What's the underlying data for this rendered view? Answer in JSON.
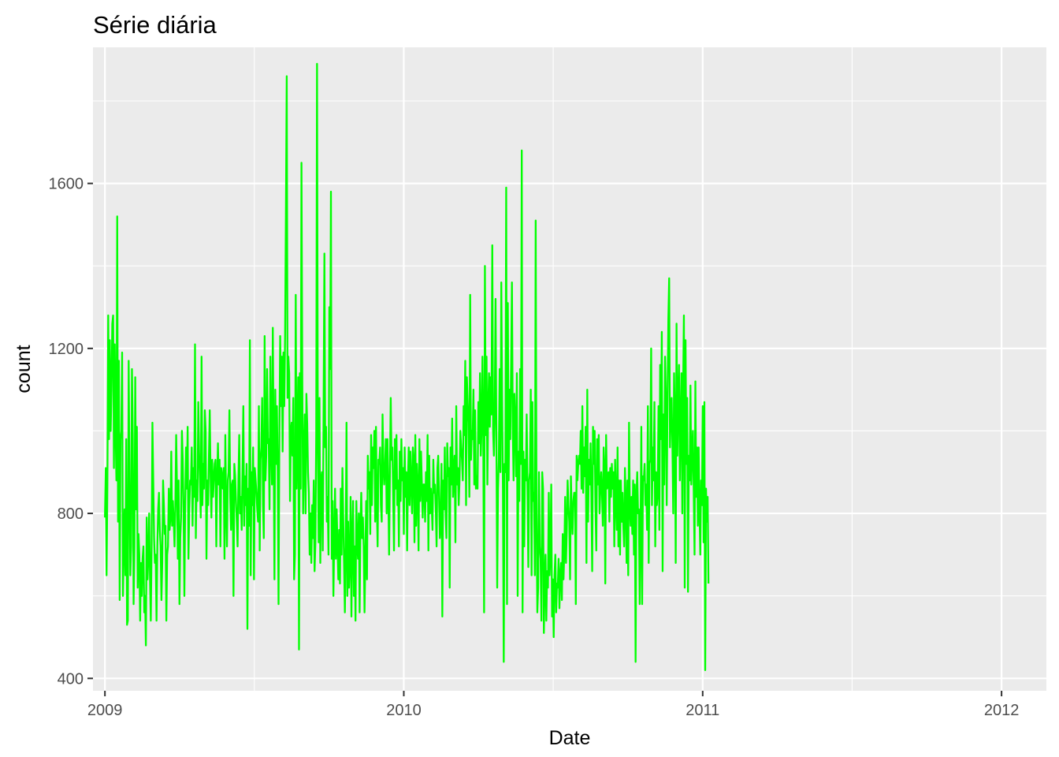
{
  "chart_data": {
    "type": "line",
    "title": "Série diária",
    "xlabel": "Date",
    "ylabel": "count",
    "xlim": [
      2008.96,
      2012.15
    ],
    "ylim": [
      370,
      1930
    ],
    "x_ticks": [
      2009,
      2010,
      2011,
      2012
    ],
    "x_tick_labels": [
      "2009",
      "2010",
      "2011",
      "2012"
    ],
    "x_minor_ticks": [
      2009.5,
      2010.5,
      2011.5
    ],
    "y_ticks": [
      400,
      800,
      1200,
      1600
    ],
    "y_tick_labels": [
      "400",
      "800",
      "1200",
      "1600"
    ],
    "y_minor_ticks": [
      600,
      1000,
      1400,
      1800
    ],
    "colors": {
      "line": "#00ff00",
      "panel": "#ebebeb",
      "grid": "#ffffff",
      "tick": "#4d4d4d"
    },
    "series": [
      {
        "name": "count",
        "x_start": 2009.0,
        "x_step": 0.00274,
        "values": [
          790,
          910,
          650,
          870,
          1280,
          980,
          1220,
          1000,
          1100,
          1260,
          1280,
          910,
          1210,
          1010,
          880,
          1520,
          780,
          1170,
          590,
          980,
          1000,
          1190,
          600,
          720,
          810,
          650,
          980,
          530,
          540,
          1170,
          900,
          650,
          720,
          1150,
          980,
          580,
          720,
          1130,
          810,
          1010,
          620,
          750,
          700,
          540,
          680,
          600,
          690,
          720,
          560,
          600,
          480,
          790,
          640,
          690,
          800,
          650,
          540,
          720,
          1020,
          880,
          740,
          680,
          700,
          540,
          720,
          810,
          850,
          760,
          720,
          590,
          680,
          880,
          820,
          750,
          770,
          540,
          700,
          720,
          860,
          760,
          790,
          950,
          770,
          830,
          780,
          720,
          820,
          990,
          860,
          690,
          880,
          580,
          740,
          790,
          1000,
          930,
          810,
          600,
          820,
          960,
          860,
          1010,
          690,
          810,
          880,
          870,
          960,
          770,
          910,
          840,
          1210,
          740,
          880,
          830,
          1070,
          950,
          880,
          790,
          1180,
          820,
          920,
          860,
          1050,
          1000,
          690,
          880,
          820,
          940,
          1050,
          890,
          790,
          930,
          840,
          880,
          920,
          930,
          720,
          880,
          970,
          870,
          930,
          720,
          910,
          890,
          860,
          910,
          690,
          990,
          810,
          720,
          880,
          900,
          1050,
          840,
          760,
          870,
          880,
          600,
          920,
          890,
          830,
          780,
          720,
          880,
          990,
          800,
          840,
          760,
          900,
          1060,
          770,
          890,
          820,
          920,
          520,
          860,
          770,
          1220,
          650,
          900,
          820,
          960,
          640,
          910,
          880,
          850,
          810,
          780,
          1060,
          710,
          930,
          960,
          1080,
          820,
          740,
          1230,
          880,
          940,
          1150,
          970,
          980,
          810,
          1180,
          960,
          870,
          1250,
          960,
          640,
          1100,
          920,
          1060,
          900,
          580,
          990,
          1230,
          1060,
          1180,
          950,
          1190,
          1060,
          1230,
          1530,
          1860,
          1080,
          1180,
          1140,
          830,
          1000,
          1020,
          940,
          1080,
          640,
          700,
          1330,
          860,
          980,
          1130,
          470,
          1140,
          860,
          1650,
          1120,
          800,
          940,
          1040,
          800,
          1090,
          1020,
          900,
          850,
          700,
          800,
          680,
          820,
          740,
          880,
          660,
          730,
          990,
          1890,
          960,
          730,
          1080,
          680,
          880,
          900,
          710,
          1050,
          1430,
          960,
          1010,
          780,
          840,
          700,
          1300,
          1150,
          1580,
          690,
          830,
          600,
          740,
          860,
          690,
          810,
          720,
          640,
          760,
          630,
          860,
          700,
          910,
          790,
          680,
          560,
          720,
          1020,
          600,
          780,
          620,
          680,
          840,
          550,
          740,
          830,
          600,
          720,
          540,
          830,
          730,
          690,
          800,
          560,
          770,
          850,
          740,
          790,
          720,
          560,
          690,
          830,
          640,
          940,
          860,
          900,
          750,
          990,
          820,
          960,
          910,
          1000,
          780,
          1010,
          820,
          720,
          930,
          920,
          960,
          820,
          780,
          1040,
          920,
          870,
          910,
          980,
          800,
          980,
          860,
          700,
          900,
          1080,
          930,
          960,
          840,
          710,
          980,
          860,
          990,
          820,
          880,
          720,
          950,
          830,
          980,
          880,
          910,
          750,
          960,
          840,
          900,
          710,
          880,
          960,
          820,
          950,
          870,
          800,
          960,
          930,
          730,
          990,
          770,
          920,
          860,
          710,
          980,
          830,
          950,
          870,
          790,
          870,
          870,
          780,
          900,
          830,
          990,
          710,
          940,
          800,
          860,
          820,
          760,
          930,
          850,
          870,
          810,
          720,
          910,
          940,
          840,
          740,
          780,
          920,
          550,
          880,
          810,
          960,
          800,
          740,
          970,
          890,
          910,
          620,
          960,
          870,
          1030,
          840,
          900,
          940,
          730,
          1060,
          870,
          910,
          820,
          880,
          1000,
          960,
          930,
          880,
          1060,
          990,
          1170,
          820,
          1130,
          1070,
          1020,
          840,
          1330,
          930,
          1000,
          980,
          1100,
          870,
          1050,
          860,
          890,
          860,
          1070,
          970,
          1140,
          940,
          1010,
          1180,
          980,
          560,
          1400,
          990,
          1180,
          870,
          1050,
          1140,
          1010,
          1130,
          1040,
          1450,
          1000,
          940,
          1050,
          1320,
          1000,
          620,
          860,
          930,
          1150,
          900,
          1360,
          1080,
          860,
          440,
          920,
          900,
          1590,
          580,
          1310,
          880,
          1100,
          980,
          1160,
          1360,
          1010,
          880,
          1090,
          1020,
          890,
          1140,
          600,
          950,
          830,
          1150,
          920,
          1680,
          560,
          950,
          720,
          930,
          880,
          1040,
          860,
          670,
          880,
          900,
          1100,
          650,
          1070,
          830,
          850,
          650,
          1510,
          810,
          560,
          620,
          900,
          720,
          690,
          540,
          900,
          860,
          510,
          630,
          700,
          540,
          660,
          620,
          850,
          650,
          700,
          870,
          550,
          640,
          500,
          650,
          700,
          560,
          630,
          620,
          690,
          570,
          650,
          680,
          590,
          750,
          640,
          710,
          840,
          680,
          760,
          880,
          820,
          780,
          640,
          890,
          800,
          750,
          830,
          850,
          850,
          580,
          940,
          880,
          920,
          940,
          920,
          1000,
          860,
          1060,
          850,
          960,
          890,
          1010,
          680,
          1100,
          780,
          930,
          870,
          970,
          850,
          660,
          1010,
          920,
          1000,
          820,
          710,
          980,
          870,
          990,
          800,
          860,
          900,
          850,
          770,
          960,
          910,
          630,
          990,
          860,
          880,
          900,
          780,
          910,
          840,
          920,
          860,
          900,
          720,
          930,
          830,
          760,
          960,
          720,
          880,
          700,
          880,
          780,
          850,
          770,
          720,
          910,
          830,
          680,
          880,
          650,
          1020,
          810,
          770,
          840,
          750,
          880,
          700,
          870,
          440,
          840,
          900,
          800,
          810,
          580,
          740,
          1010,
          580,
          890,
          880,
          920,
          820,
          870,
          760,
          1060,
          680,
          920,
          930,
          1200,
          820,
          960,
          880,
          1070,
          720,
          900,
          820,
          850,
          1060,
          760,
          1160,
          980,
          1240,
          660,
          1040,
          870,
          1180,
          1080,
          820,
          1080,
          1270,
          1370,
          960,
          1040,
          1080,
          960,
          800,
          1140,
          1030,
          680,
          1260,
          940,
          1080,
          1160,
          880,
          1020,
          1140,
          800,
          1100,
          1280,
          620,
          1220,
          920,
          1080,
          610,
          940,
          880,
          1110,
          870,
          950,
          1000,
          850,
          700,
          1120,
          840,
          960,
          770,
          960,
          810,
          700,
          880,
          820,
          1060,
          730,
          1070,
          420,
          860,
          780,
          840,
          630
        ]
      }
    ]
  }
}
